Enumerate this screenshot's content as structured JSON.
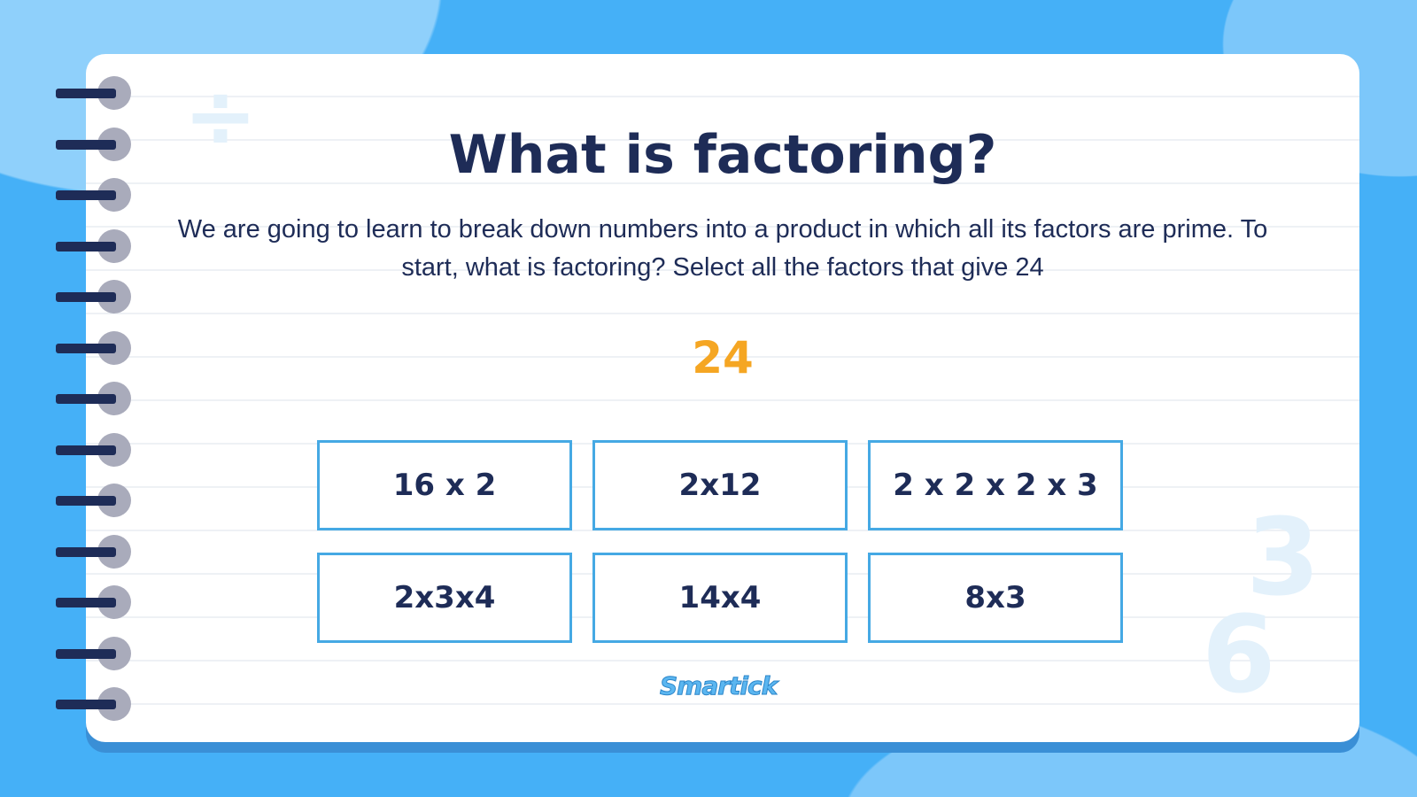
{
  "slide": {
    "title": "What is factoring?",
    "paragraph": "We are going to learn to break down numbers into a product in which all its factors are prime. To start, what is factoring? Select all the factors that give 24",
    "number": "24",
    "options": [
      "16 x 2",
      "2x12",
      "2 x 2 x 2 x 3",
      "2x3x4",
      "14x4",
      "8x3"
    ],
    "logo": "Smartick"
  },
  "decorations": {
    "divide_symbol": "÷",
    "digit_3": "3",
    "digit_6": "6"
  },
  "colors": {
    "background": "#45b0f7",
    "title": "#1e2c57",
    "accent_number": "#f5a623",
    "option_border": "#45a9e4"
  }
}
